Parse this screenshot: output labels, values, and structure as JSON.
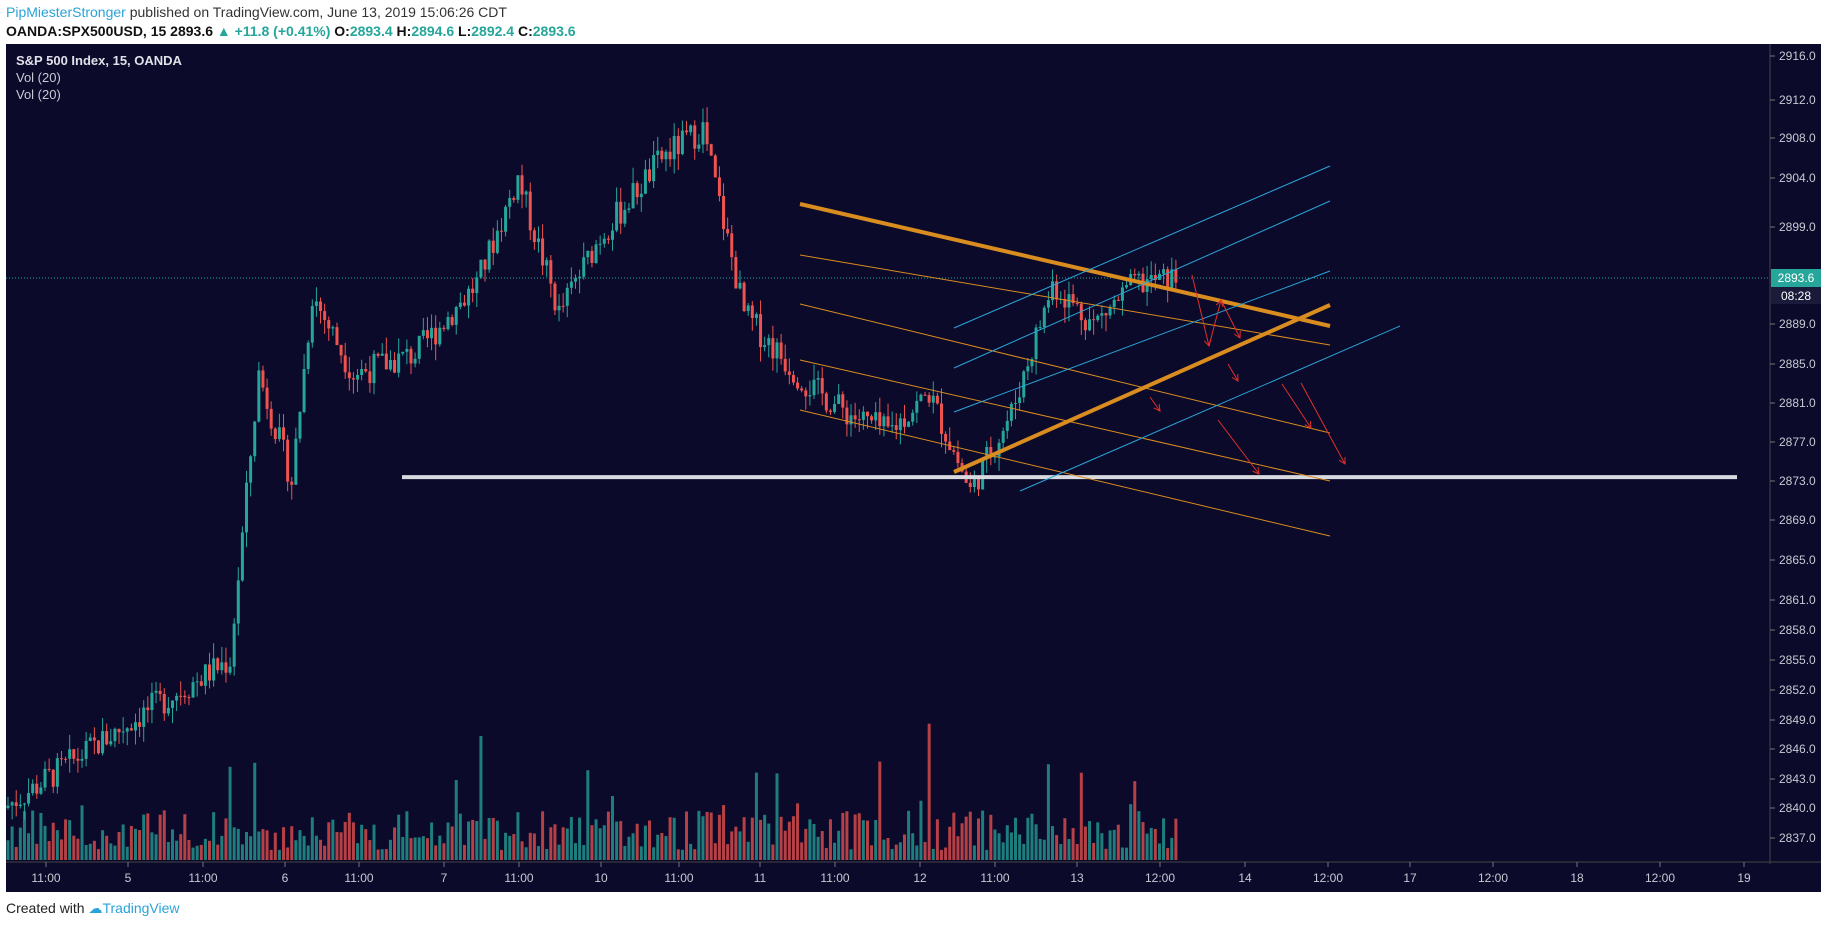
{
  "header": {
    "author": "PipMiesterStronger",
    "published_text": "published on TradingView.com, June 13, 2019 15:06:26 CDT",
    "symbol_line": "OANDA:SPX500USD, 15",
    "last": "2893.6",
    "change": "▲ +11.8 (+0.41%)",
    "o_label": "O:",
    "o": "2893.4",
    "h_label": "H:",
    "h": "2894.6",
    "l_label": "L:",
    "l": "2892.4",
    "c_label": "C:",
    "c": "2893.6"
  },
  "legend": {
    "title": "S&P 500 Index, 15, OANDA",
    "vol1": "Vol (20)",
    "vol2": "Vol (20)"
  },
  "footer": {
    "created": "Created with",
    "brand": "TradingView"
  },
  "colors": {
    "background": "#0b0a2a",
    "up": "#26a69a",
    "down": "#ef5350",
    "orange": "#d98c1f",
    "cyan": "#2aa6d8",
    "red_arrow": "#e0302a",
    "support": "#d9d9e0",
    "last_price": "#26a69a"
  },
  "chart_data": {
    "type": "candlestick",
    "y_ticks": [
      "2916.0",
      "2912.0",
      "2908.0",
      "2904.0",
      "2899.0",
      "2893.6",
      "2889.0",
      "2885.0",
      "2881.0",
      "2877.0",
      "2873.0",
      "2869.0",
      "2865.0",
      "2861.0",
      "2858.0",
      "2855.0",
      "2852.0",
      "2849.0",
      "2846.0",
      "2843.0",
      "2840.0",
      "2837.0"
    ],
    "x_ticks": [
      "11:00",
      "5",
      "11:00",
      "6",
      "11:00",
      "7",
      "11:00",
      "10",
      "11:00",
      "11",
      "11:00",
      "12",
      "11:00",
      "13",
      "12:00",
      "14",
      "12:00",
      "17",
      "12:00",
      "18",
      "12:00",
      "19"
    ],
    "last_price_label": "2893.6",
    "countdown_label": "08:28",
    "series": [
      {
        "name": "S&P 500 Index, 15, OANDA",
        "key_points": [
          [
            0,
            2840
          ],
          [
            35,
            2850
          ],
          [
            55,
            2855
          ],
          [
            62,
            2884
          ],
          [
            70,
            2873
          ],
          [
            75,
            2892
          ],
          [
            85,
            2884
          ],
          [
            100,
            2886
          ],
          [
            115,
            2893
          ],
          [
            125,
            2904
          ],
          [
            135,
            2890
          ],
          [
            145,
            2898
          ],
          [
            160,
            2906
          ],
          [
            170,
            2909
          ],
          [
            180,
            2890
          ],
          [
            195,
            2883
          ],
          [
            205,
            2880
          ],
          [
            215,
            2878
          ],
          [
            225,
            2882
          ],
          [
            235,
            2872
          ],
          [
            245,
            2880
          ],
          [
            255,
            2893
          ],
          [
            265,
            2889
          ],
          [
            275,
            2893
          ],
          [
            285,
            2893.6
          ]
        ]
      }
    ],
    "support_level": 2873.4
  }
}
